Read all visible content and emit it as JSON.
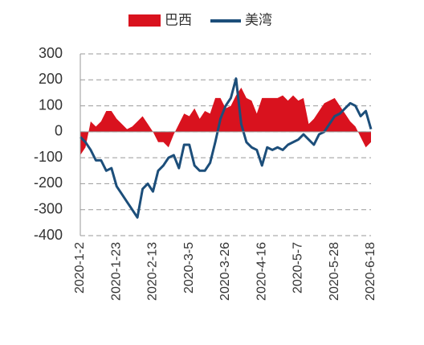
{
  "chart_data": {
    "type": "area_line",
    "categories": [
      "2020-1-2",
      null,
      null,
      null,
      null,
      null,
      null,
      "2020-1-23",
      null,
      null,
      null,
      null,
      null,
      null,
      "2020-2-13",
      null,
      null,
      null,
      null,
      null,
      null,
      "2020-3-5",
      null,
      null,
      null,
      null,
      null,
      null,
      "2020-3-26",
      null,
      null,
      null,
      null,
      null,
      null,
      "2020-4-16",
      null,
      null,
      null,
      null,
      null,
      null,
      "2020-5-7",
      null,
      null,
      null,
      null,
      null,
      null,
      "2020-5-28",
      null,
      null,
      null,
      null,
      null,
      null,
      "2020-6-18"
    ],
    "series": [
      {
        "name": "巴西",
        "type": "area",
        "color": "#d9121e",
        "values": [
          -90,
          -60,
          40,
          20,
          40,
          80,
          80,
          50,
          30,
          10,
          20,
          40,
          60,
          30,
          0,
          -40,
          -40,
          -60,
          -10,
          30,
          70,
          60,
          90,
          50,
          80,
          70,
          130,
          130,
          90,
          100,
          140,
          170,
          130,
          120,
          70,
          130,
          130,
          130,
          130,
          140,
          120,
          140,
          120,
          130,
          30,
          50,
          80,
          110,
          120,
          130,
          100,
          70,
          40,
          20,
          -20,
          -60,
          -40
        ]
      },
      {
        "name": "美湾",
        "type": "line",
        "color": "#1c4e7a",
        "values": [
          -20,
          -40,
          -70,
          -110,
          -110,
          -150,
          -140,
          -210,
          -240,
          -270,
          -300,
          -330,
          -220,
          -200,
          -230,
          -150,
          -130,
          -100,
          -90,
          -140,
          -50,
          -50,
          -130,
          -150,
          -150,
          -120,
          -40,
          50,
          100,
          130,
          205,
          30,
          -40,
          -60,
          -70,
          -130,
          -60,
          -70,
          -60,
          -70,
          -50,
          -40,
          -30,
          -10,
          -30,
          -50,
          -10,
          0,
          30,
          60,
          70,
          90,
          110,
          100,
          60,
          80,
          10
        ]
      }
    ],
    "ylim": [
      -400,
      300
    ],
    "yticks": [
      -400,
      -300,
      -200,
      -100,
      0,
      100,
      200,
      300
    ],
    "grid": true
  }
}
